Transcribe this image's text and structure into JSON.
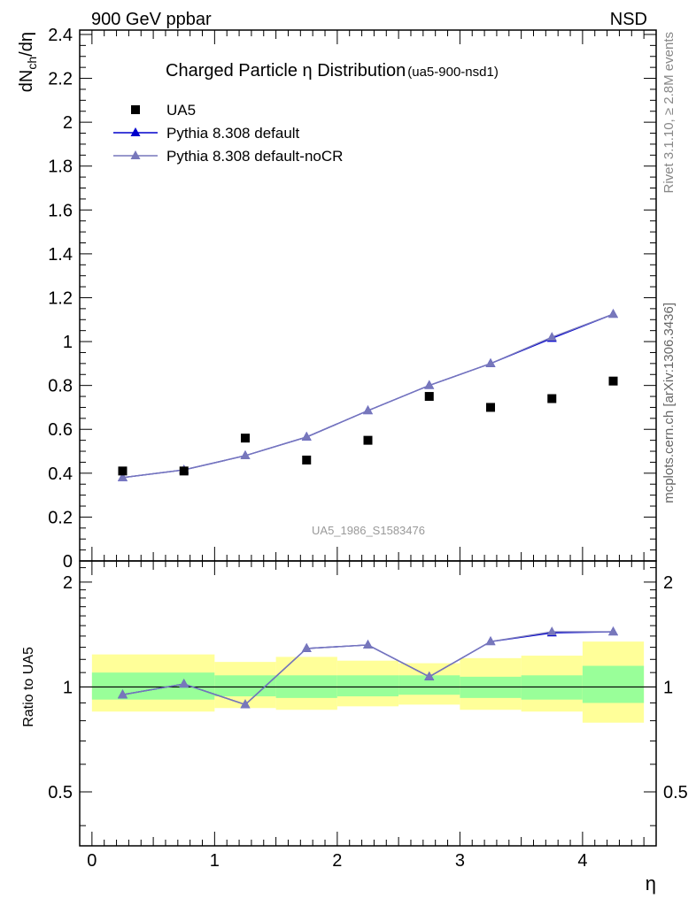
{
  "header": {
    "left": "900 GeV ppbar",
    "right": "NSD"
  },
  "side_labels": {
    "rivet": "Rivet 3.1.10, ≥ 2.8M events",
    "mcplots": "mcplots.cern.ch [arXiv:1306.3436]"
  },
  "colors": {
    "data": "#000000",
    "default": "#0000cc",
    "nocr": "#7777bb",
    "band_inner": "#99ff99",
    "band_outer": "#ffff99",
    "watermark": "#999999"
  },
  "chart_data": [
    {
      "type": "scatter",
      "title": "Charged Particle η Distribution",
      "title_suffix": "(ua5-900-nsd1)",
      "ylabel": "dN_ch/dη",
      "watermark": "UA5_1986_S1583476",
      "xlim": [
        -0.1,
        4.6
      ],
      "ylim": [
        0,
        2.42
      ],
      "yticks": [
        0,
        0.2,
        0.4,
        0.6,
        0.8,
        1,
        1.2,
        1.4,
        1.6,
        1.8,
        2,
        2.2,
        2.4
      ],
      "ytick_labels": [
        "0",
        "0.2",
        "0.4",
        "0.6",
        "0.8",
        "1",
        "1.2",
        "1.4",
        "1.6",
        "1.8",
        "2",
        "2.2",
        "2.4"
      ],
      "legend_position": "top-left",
      "x": [
        0.25,
        0.75,
        1.25,
        1.75,
        2.25,
        2.75,
        3.25,
        3.75,
        4.25
      ],
      "series": [
        {
          "name": "UA5",
          "style": "square",
          "values": [
            0.41,
            0.41,
            0.56,
            0.46,
            0.55,
            0.75,
            0.7,
            0.74,
            0.82
          ]
        },
        {
          "name": "Pythia 8.308 default",
          "style": "line",
          "values": [
            0.38,
            0.415,
            0.48,
            0.565,
            0.685,
            0.8,
            0.9,
            1.015,
            1.125
          ]
        },
        {
          "name": "Pythia 8.308 default-noCR",
          "style": "line",
          "values": [
            0.38,
            0.415,
            0.48,
            0.565,
            0.685,
            0.8,
            0.9,
            1.02,
            1.125
          ]
        }
      ]
    },
    {
      "type": "line",
      "ylabel": "Ratio to UA5",
      "xlabel": "η",
      "xlim": [
        -0.1,
        4.6
      ],
      "ylim": [
        0.35,
        2.3
      ],
      "log_y": true,
      "xticks": [
        0,
        1,
        2,
        3,
        4
      ],
      "xtick_labels": [
        "0",
        "1",
        "2",
        "3",
        "4"
      ],
      "yticks": [
        0.5,
        1,
        2
      ],
      "ytick_labels": [
        "0.5",
        "1",
        "2"
      ],
      "bin_edges": [
        0,
        1,
        1.5,
        2,
        2.5,
        3,
        3.5,
        4,
        4.5
      ],
      "band_inner": {
        "low": [
          0.92,
          0.94,
          0.93,
          0.94,
          0.95,
          0.93,
          0.92,
          0.9
        ],
        "high": [
          1.1,
          1.08,
          1.08,
          1.08,
          1.08,
          1.07,
          1.08,
          1.15
        ]
      },
      "band_outer": {
        "low": [
          0.85,
          0.87,
          0.86,
          0.88,
          0.89,
          0.86,
          0.85,
          0.79
        ],
        "high": [
          1.24,
          1.18,
          1.22,
          1.19,
          1.17,
          1.21,
          1.23,
          1.35
        ]
      },
      "x": [
        0.25,
        0.75,
        1.25,
        1.75,
        2.25,
        2.75,
        3.25,
        3.75,
        4.25
      ],
      "series": [
        {
          "name": "Pythia 8.308 default",
          "values": [
            0.95,
            1.02,
            0.89,
            1.29,
            1.32,
            1.07,
            1.35,
            1.43,
            1.44
          ]
        },
        {
          "name": "Pythia 8.308 default-noCR",
          "values": [
            0.95,
            1.02,
            0.89,
            1.29,
            1.32,
            1.07,
            1.35,
            1.44,
            1.44
          ]
        }
      ]
    }
  ]
}
